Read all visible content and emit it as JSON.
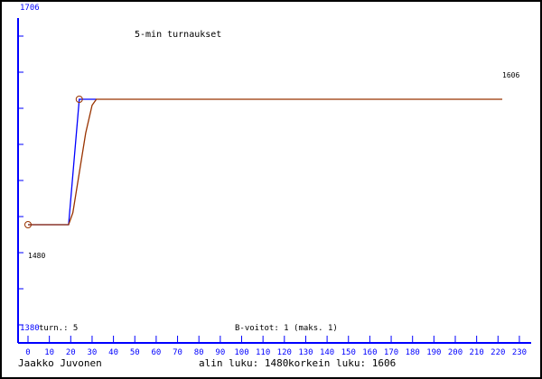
{
  "chart_data": {
    "type": "line",
    "title": "5-min turnaukset",
    "xlim": [
      0,
      230
    ],
    "ylim": [
      1380,
      1706
    ],
    "x_ticks": [
      0,
      10,
      20,
      30,
      40,
      50,
      60,
      70,
      80,
      90,
      100,
      110,
      120,
      130,
      140,
      150,
      160,
      170,
      180,
      190,
      200,
      210,
      220,
      230
    ],
    "y_top_label": "1706",
    "y_bottom_label": "1380",
    "grid": false,
    "series": [
      {
        "color": "#0000ff",
        "points": [
          [
            0,
            1480
          ],
          [
            19,
            1480
          ],
          [
            24,
            1606
          ],
          [
            32,
            1606
          ]
        ]
      },
      {
        "color": "#993300",
        "points": [
          [
            0,
            1480
          ],
          [
            19,
            1480
          ],
          [
            21,
            1492
          ],
          [
            24,
            1532
          ],
          [
            27,
            1572
          ],
          [
            30,
            1600
          ],
          [
            32,
            1606
          ],
          [
            222,
            1606
          ]
        ]
      }
    ],
    "markers": [
      [
        0,
        1480
      ],
      [
        24,
        1606
      ]
    ],
    "annotations": {
      "low_value": "1480",
      "high_value": "1606"
    },
    "info": {
      "games": "turn.: 5",
      "b_wins": "B-voitot: 1 (maks. 1)"
    }
  },
  "footer": {
    "player": "Jaakko Juvonen",
    "lowest": "alin luku: 1480",
    "highest": "korkein luku: 1606"
  },
  "colors": {
    "axis": "#0000ff",
    "rating": "#993300",
    "text": "#000000"
  }
}
